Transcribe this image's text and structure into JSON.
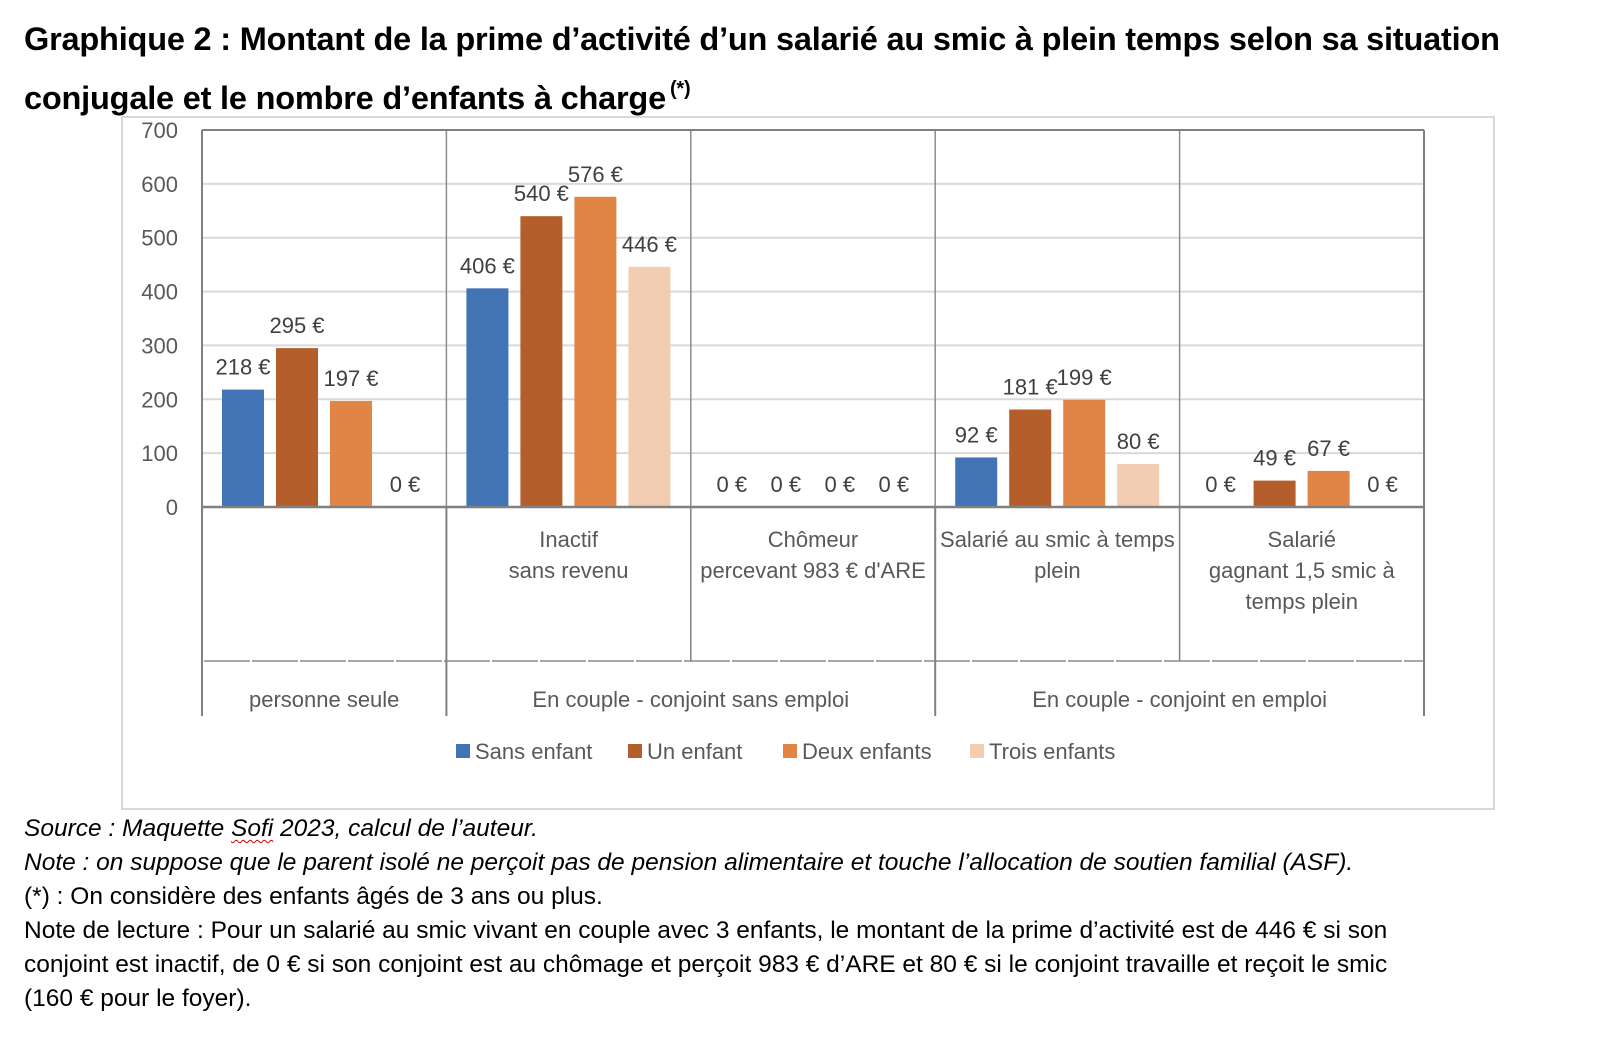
{
  "title": {
    "main": "Graphique 2 : Montant de la prime d’activité d’un salarié au smic à plein temps selon sa situation conjugale et le nombre d’enfants à charge",
    "marker": "(*)"
  },
  "chart_data": {
    "type": "bar",
    "ylim": [
      0,
      700
    ],
    "yticks": [
      "0",
      "100",
      "200",
      "300",
      "400",
      "500",
      "600",
      "700"
    ],
    "grid": true,
    "legend_position": "bottom",
    "value_suffix": " €",
    "groups": [
      {
        "label": "personne seule",
        "categories": [
          {
            "label": "",
            "values": [
              218,
              295,
              197,
              0
            ]
          }
        ]
      },
      {
        "label": "En couple - conjoint sans emploi",
        "categories": [
          {
            "label": "Inactif\nsans revenu",
            "values": [
              406,
              540,
              576,
              446
            ]
          },
          {
            "label": "Chômeur\npercevant 983 € d'ARE",
            "values": [
              0,
              0,
              0,
              0
            ]
          }
        ]
      },
      {
        "label": "En couple - conjoint en emploi",
        "categories": [
          {
            "label": "Salarié au smic à temps\nplein",
            "values": [
              92,
              181,
              199,
              80
            ]
          },
          {
            "label": "Salarié\ngagnant 1,5 smic à\ntemps plein",
            "values": [
              0,
              49,
              67,
              0
            ]
          }
        ]
      }
    ],
    "series": [
      {
        "name": "Sans enfant",
        "color": "#4273b4"
      },
      {
        "name": "Un enfant",
        "color": "#b45f2b"
      },
      {
        "name": "Deux enfants",
        "color": "#e08545"
      },
      {
        "name": "Trois enfants",
        "color": "#f2cdb2"
      }
    ]
  },
  "notes": {
    "source_prefix": "Source : Maquette ",
    "source_word": "Sofi",
    "source_suffix": " 2023, calcul de l’auteur.",
    "note": "Note : on suppose que le parent isolé ne perçoit pas de pension alimentaire et touche l’allocation de soutien familial (ASF).",
    "asterisk": "(*) : On considère des enfants âgés de 3 ans ou plus.",
    "reading_line1": "Note de lecture : Pour un salarié au smic vivant en couple avec 3 enfants, le montant de la prime d’activité est de 446 € si son",
    "reading_line2": "conjoint est inactif, de 0 € si son conjoint est au chômage et perçoit 983 € d’ARE et 80 € si le conjoint travaille et reçoit le smic",
    "reading_line3": "(160 € pour le foyer)."
  }
}
